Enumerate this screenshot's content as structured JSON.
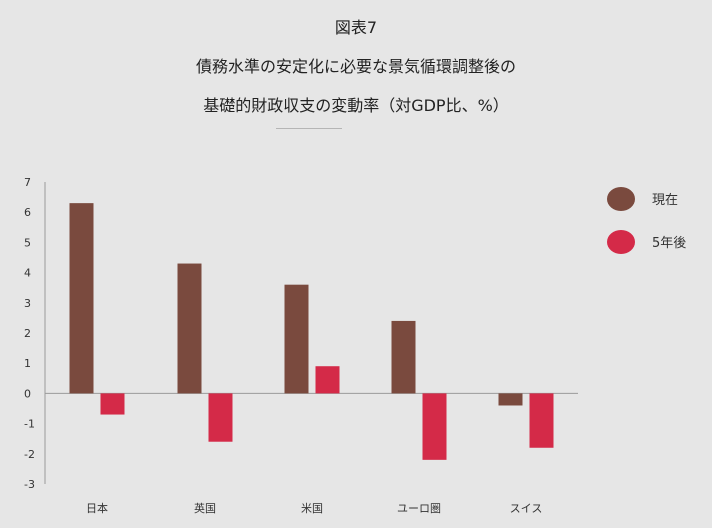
{
  "title": {
    "line1": "図表7",
    "line2": "債務水準の安定化に必要な景気循環調整後の",
    "line3": "基礎的財政収支の変動率（対GDP比、%）"
  },
  "chart_data": {
    "type": "bar",
    "categories": [
      "日本",
      "英国",
      "米国",
      "ユーロ圏",
      "スイス"
    ],
    "series": [
      {
        "name": "現在",
        "color": "#7a4a3e",
        "values": [
          6.3,
          4.3,
          3.6,
          2.4,
          -0.4
        ]
      },
      {
        "name": "5年後",
        "color": "#d42a48",
        "values": [
          -0.7,
          -1.6,
          0.9,
          -2.2,
          -1.8
        ]
      }
    ],
    "ylim": [
      -3,
      7
    ],
    "yticks": [
      "-3",
      "-2",
      "-1",
      "0",
      "1",
      "2",
      "3",
      "4",
      "5",
      "6",
      "7"
    ],
    "grid": false,
    "legend": "right"
  }
}
